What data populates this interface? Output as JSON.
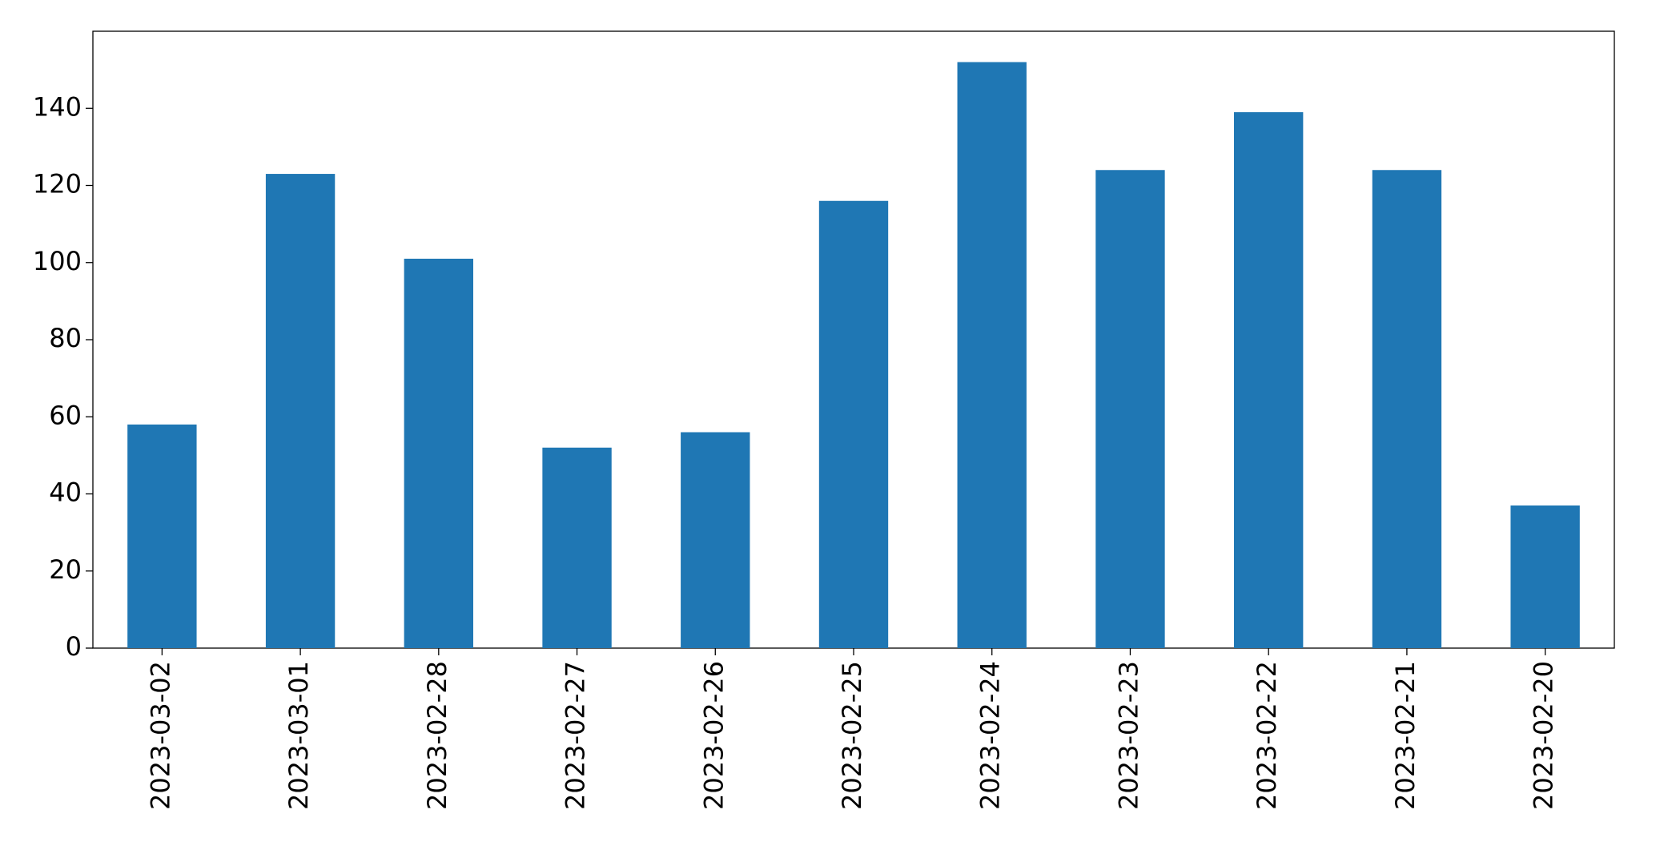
{
  "chart_data": {
    "type": "bar",
    "categories": [
      "2023-03-02",
      "2023-03-01",
      "2023-02-28",
      "2023-02-27",
      "2023-02-26",
      "2023-02-25",
      "2023-02-24",
      "2023-02-23",
      "2023-02-22",
      "2023-02-21",
      "2023-02-20"
    ],
    "values": [
      58,
      123,
      101,
      52,
      56,
      116,
      152,
      124,
      139,
      124,
      37
    ],
    "color": "#1f77b4",
    "ylim": [
      0,
      160
    ],
    "yticks": [
      0,
      20,
      40,
      60,
      80,
      100,
      120,
      140
    ],
    "grid": false
  }
}
